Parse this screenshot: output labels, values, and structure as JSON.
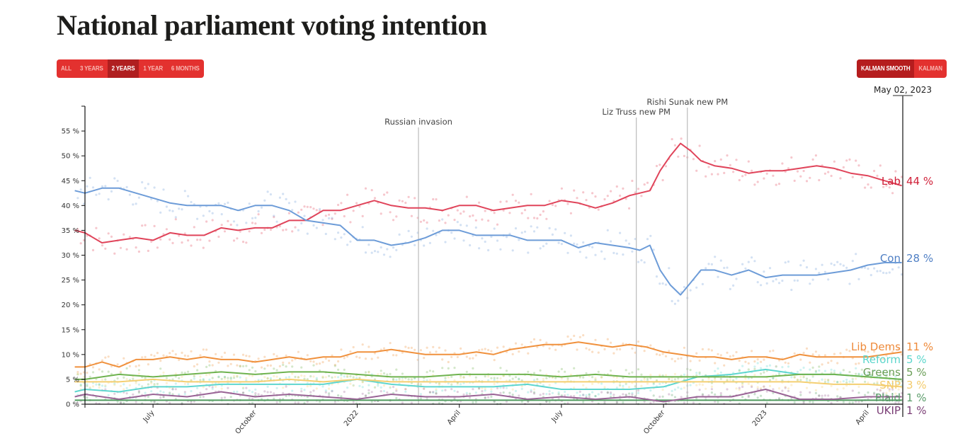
{
  "page": {
    "title": "National parliament voting intention"
  },
  "controls": {
    "range_buttons": [
      {
        "label": "ALL",
        "active": false
      },
      {
        "label": "3 YEARS",
        "active": false
      },
      {
        "label": "2 YEARS",
        "active": true
      },
      {
        "label": "1 YEAR",
        "active": false
      },
      {
        "label": "6 MONTHS",
        "active": false
      }
    ],
    "smoothing_buttons": [
      {
        "label": "KALMAN SMOOTH",
        "active": true
      },
      {
        "label": "KALMAN",
        "active": false
      }
    ]
  },
  "colors": {
    "accent": "#e3312f",
    "accent_active": "#b01f20"
  },
  "chart_data": {
    "type": "line",
    "title": "National parliament voting intention",
    "xlabel": "",
    "ylabel": "",
    "ylim": [
      0,
      60
    ],
    "x_range": [
      "2021-05-02",
      "2023-05-02"
    ],
    "y_ticks": [
      {
        "value": 0,
        "label": "0 %"
      },
      {
        "value": 5,
        "label": "5 %"
      },
      {
        "value": 10,
        "label": "10 %"
      },
      {
        "value": 15,
        "label": "15 %"
      },
      {
        "value": 20,
        "label": "20 %"
      },
      {
        "value": 25,
        "label": "25 %"
      },
      {
        "value": 30,
        "label": "30 %"
      },
      {
        "value": 35,
        "label": "35 %"
      },
      {
        "value": 40,
        "label": "40 %"
      },
      {
        "value": 45,
        "label": "45 %"
      },
      {
        "value": 50,
        "label": "50 %"
      },
      {
        "value": 55,
        "label": "55 %"
      }
    ],
    "x_ticks": [
      {
        "value": 2,
        "label": "July"
      },
      {
        "value": 5,
        "label": "October"
      },
      {
        "value": 8,
        "label": "2022"
      },
      {
        "value": 11,
        "label": "April"
      },
      {
        "value": 14,
        "label": "July"
      },
      {
        "value": 17,
        "label": "October"
      },
      {
        "value": 20,
        "label": "2023"
      },
      {
        "value": 23,
        "label": "April"
      }
    ],
    "x_unit": "months since 2021-05-01",
    "x_max": 24.03,
    "current_date_label": "May 02, 2023",
    "events": [
      {
        "x": 9.8,
        "label": "Russian invasion"
      },
      {
        "x": 16.2,
        "label": "Liz Truss new PM"
      },
      {
        "x": 17.7,
        "label": "Rishi Sunak new PM"
      }
    ],
    "grid": false,
    "legend": "right-end labels",
    "series": [
      {
        "name": "Lab",
        "final_label": "44 %",
        "color": "#e0445a",
        "x": [
          -0.3,
          0,
          0.5,
          1,
          1.5,
          2,
          2.5,
          3,
          3.5,
          4,
          4.5,
          5,
          5.5,
          6,
          6.5,
          7,
          7.5,
          8,
          8.5,
          9,
          9.5,
          10,
          10.5,
          11,
          11.5,
          12,
          12.5,
          13,
          13.5,
          14,
          14.5,
          15,
          15.5,
          16,
          16.3,
          16.6,
          16.9,
          17.2,
          17.5,
          17.8,
          18.1,
          18.5,
          19,
          19.5,
          20,
          20.5,
          21,
          21.5,
          22,
          22.5,
          23,
          23.5,
          24
        ],
        "values": [
          35,
          34.5,
          32.5,
          33,
          33.5,
          33,
          34.5,
          34,
          34,
          35.5,
          35,
          35.5,
          35.5,
          37,
          37,
          39,
          39,
          40,
          41,
          40,
          39.5,
          39.5,
          39,
          40,
          40,
          39,
          39.5,
          40,
          40,
          41,
          40.5,
          39.5,
          40.5,
          42,
          42.5,
          43,
          47,
          50,
          52.5,
          51,
          49,
          48,
          47.5,
          46.5,
          47,
          47,
          47.5,
          48,
          47.5,
          46.5,
          46,
          45,
          44
        ]
      },
      {
        "name": "Con",
        "final_label": "28 %",
        "color": "#6d9cd8",
        "x": [
          -0.3,
          0,
          0.5,
          1,
          1.5,
          2,
          2.5,
          3,
          3.5,
          4,
          4.5,
          5,
          5.5,
          6,
          6.5,
          7,
          7.5,
          8,
          8.5,
          9,
          9.5,
          10,
          10.5,
          11,
          11.5,
          12,
          12.5,
          13,
          13.5,
          14,
          14.5,
          15,
          15.5,
          16,
          16.3,
          16.6,
          16.9,
          17.2,
          17.5,
          17.8,
          18.1,
          18.5,
          19,
          19.5,
          20,
          20.5,
          21,
          21.5,
          22,
          22.5,
          23,
          23.5,
          24
        ],
        "values": [
          43,
          42.5,
          43.5,
          43.5,
          42.5,
          41.5,
          40.5,
          40,
          40,
          40,
          39,
          40,
          40,
          39,
          37,
          36.5,
          36,
          33,
          33,
          32,
          32.5,
          33.5,
          35,
          35,
          34,
          34,
          34,
          33,
          33,
          33,
          31.5,
          32.5,
          32,
          31.5,
          31,
          32,
          27,
          24,
          22,
          24.5,
          27,
          27,
          26,
          27,
          25.5,
          26,
          26,
          26,
          26.5,
          27,
          28,
          28.5,
          28.5
        ]
      },
      {
        "name": "Lib Dems",
        "final_label": "11 %",
        "color": "#f0913d",
        "x": [
          -0.3,
          0,
          0.5,
          1,
          1.5,
          2,
          2.5,
          3,
          3.5,
          4,
          4.5,
          5,
          5.5,
          6,
          6.5,
          7,
          7.5,
          8,
          8.5,
          9,
          9.5,
          10,
          10.5,
          11,
          11.5,
          12,
          12.5,
          13,
          13.5,
          14,
          14.5,
          15,
          15.5,
          16,
          16.5,
          17,
          17.5,
          18,
          18.5,
          19,
          19.5,
          20,
          20.5,
          21,
          21.5,
          22,
          22.5,
          23,
          23.5,
          24
        ],
        "values": [
          7.5,
          7.5,
          8.5,
          7.5,
          9,
          9,
          9.5,
          9,
          9.5,
          9,
          9,
          8.5,
          9,
          9.5,
          9,
          9.5,
          9.5,
          10.5,
          10.5,
          11,
          10.5,
          10,
          10,
          10,
          10.5,
          10,
          11,
          11.5,
          12,
          12,
          12.5,
          12,
          11.5,
          12,
          11.5,
          10.5,
          10,
          9.5,
          9.5,
          9,
          9.5,
          9.5,
          9,
          10,
          9.5,
          9.5,
          9.5,
          9.5,
          10,
          10.5
        ]
      },
      {
        "name": "Reform",
        "final_label": "5 %",
        "color": "#5fd6cf",
        "x": [
          -0.3,
          0,
          1,
          2,
          3,
          4,
          5,
          6,
          7,
          8,
          9,
          10,
          11,
          12,
          13,
          14,
          15,
          16,
          17,
          18,
          19,
          20,
          21,
          22,
          23,
          24
        ],
        "values": [
          2.5,
          3,
          2.5,
          3.5,
          3.5,
          4,
          4,
          4,
          4,
          5,
          4,
          3.5,
          3.5,
          3.5,
          4,
          3,
          3,
          3,
          3.5,
          5.5,
          6,
          7,
          6,
          6,
          5.5,
          5
        ]
      },
      {
        "name": "Greens",
        "final_label": "5 %",
        "color": "#6fb34f",
        "x": [
          -0.3,
          0,
          1,
          2,
          3,
          4,
          5,
          6,
          7,
          8,
          9,
          10,
          11,
          12,
          13,
          14,
          15,
          16,
          17,
          18,
          19,
          20,
          21,
          22,
          23,
          24
        ],
        "values": [
          5,
          5,
          6,
          5.5,
          6,
          6.5,
          6,
          6.5,
          6.5,
          6,
          5.5,
          5.5,
          6,
          6,
          6,
          5.5,
          6,
          5.5,
          5.5,
          5.5,
          5.5,
          5.5,
          6,
          6,
          5.5,
          5
        ]
      },
      {
        "name": "SNP",
        "final_label": "3 %",
        "color": "#f4cf72",
        "x": [
          -0.3,
          0,
          1,
          2,
          3,
          4,
          5,
          6,
          7,
          8,
          9,
          10,
          11,
          12,
          13,
          14,
          15,
          16,
          17,
          18,
          19,
          20,
          21,
          22,
          23,
          24
        ],
        "values": [
          4.5,
          4.5,
          4.5,
          5,
          4.5,
          4.5,
          4.5,
          5,
          4.5,
          5,
          4.5,
          4.5,
          4.5,
          4.5,
          4.5,
          4.5,
          4.5,
          4.5,
          4.5,
          4.5,
          4.5,
          4.5,
          4.5,
          4,
          4,
          3.5
        ]
      },
      {
        "name": "Plaid",
        "final_label": "1 %",
        "color": "#4e9a5c",
        "x": [
          -0.3,
          24
        ],
        "values": [
          0.8,
          0.8
        ]
      },
      {
        "name": "UKIP",
        "final_label": "1 %",
        "color": "#9a6496",
        "x": [
          -0.3,
          0,
          1,
          2,
          3,
          4,
          5,
          6,
          7,
          8,
          9,
          10,
          11,
          12,
          13,
          14,
          15,
          16,
          17,
          18,
          19,
          20,
          21,
          22,
          23,
          24
        ],
        "values": [
          1.5,
          2,
          1,
          2,
          1.5,
          2.5,
          1.5,
          2,
          1.5,
          1,
          2,
          1.5,
          1.5,
          2,
          1,
          1.5,
          1,
          1.5,
          0.5,
          1.5,
          1.5,
          3,
          1,
          1,
          1.5,
          1.5
        ]
      }
    ]
  }
}
